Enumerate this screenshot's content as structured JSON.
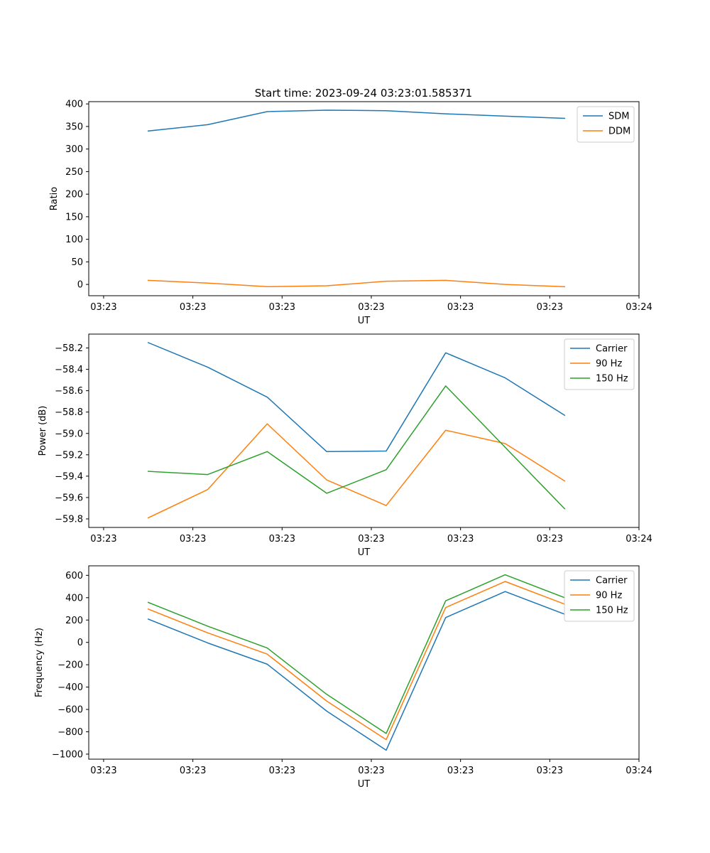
{
  "figure_title": "Start time: 2023-09-24 03:23:01.585371",
  "chart_data": [
    {
      "type": "line",
      "title": "Start time: 2023-09-24 03:23:01.585371",
      "xlabel": "UT",
      "ylabel": "Ratio",
      "x": [
        1,
        2,
        3,
        4,
        5,
        6,
        7,
        8
      ],
      "x_ticks": [
        0.25,
        1.75,
        3.25,
        4.75,
        6.25,
        7.75,
        9.25
      ],
      "x_tick_labels": [
        "03:23",
        "03:23",
        "03:23",
        "03:23",
        "03:23",
        "03:23",
        "03:24"
      ],
      "xlim": [
        0,
        9.25
      ],
      "ylim": [
        -25,
        405
      ],
      "y_ticks": [
        0,
        50,
        100,
        150,
        200,
        250,
        300,
        350,
        400
      ],
      "y_tick_labels": [
        "0",
        "50",
        "100",
        "150",
        "200",
        "250",
        "300",
        "350",
        "400"
      ],
      "legend_position": "upper-right",
      "series": [
        {
          "name": "SDM",
          "color": "#1f77b4",
          "values": [
            340,
            354,
            383,
            386,
            385,
            378,
            373,
            368
          ]
        },
        {
          "name": "DDM",
          "color": "#ff7f0e",
          "values": [
            9,
            3,
            -5,
            -3,
            7,
            9,
            0,
            -5
          ]
        }
      ]
    },
    {
      "type": "line",
      "title": "",
      "xlabel": "UT",
      "ylabel": "Power (dB)",
      "x": [
        1,
        2,
        3,
        4,
        5,
        6,
        7,
        8
      ],
      "x_ticks": [
        0.25,
        1.75,
        3.25,
        4.75,
        6.25,
        7.75,
        9.25
      ],
      "x_tick_labels": [
        "03:23",
        "03:23",
        "03:23",
        "03:23",
        "03:23",
        "03:23",
        "03:24"
      ],
      "xlim": [
        0,
        9.25
      ],
      "ylim": [
        -59.88,
        -58.07
      ],
      "y_ticks": [
        -59.8,
        -59.6,
        -59.4,
        -59.2,
        -59.0,
        -58.8,
        -58.6,
        -58.4,
        -58.2
      ],
      "y_tick_labels": [
        "−59.8",
        "−59.6",
        "−59.4",
        "−59.2",
        "−59.0",
        "−58.8",
        "−58.6",
        "−58.4",
        "−58.2"
      ],
      "legend_position": "upper-right",
      "series": [
        {
          "name": "Carrier",
          "color": "#1f77b4",
          "values": [
            -58.15,
            -58.38,
            -58.66,
            -59.17,
            -59.165,
            -58.245,
            -58.48,
            -58.83
          ]
        },
        {
          "name": "90 Hz",
          "color": "#ff7f0e",
          "values": [
            -59.79,
            -59.525,
            -58.91,
            -59.435,
            -59.675,
            -58.97,
            -59.095,
            -59.445
          ]
        },
        {
          "name": "150 Hz",
          "color": "#2ca02c",
          "values": [
            -59.355,
            -59.385,
            -59.17,
            -59.56,
            -59.34,
            -58.555,
            -59.13,
            -59.705
          ]
        }
      ]
    },
    {
      "type": "line",
      "title": "",
      "xlabel": "UT",
      "ylabel": "Frequency (Hz)",
      "x": [
        1,
        2,
        3,
        4,
        5,
        6,
        7,
        8
      ],
      "x_ticks": [
        0.25,
        1.75,
        3.25,
        4.75,
        6.25,
        7.75,
        9.25
      ],
      "x_tick_labels": [
        "03:23",
        "03:23",
        "03:23",
        "03:23",
        "03:23",
        "03:23",
        "03:24"
      ],
      "xlim": [
        0,
        9.25
      ],
      "ylim": [
        -1045,
        685
      ],
      "y_ticks": [
        -1000,
        -800,
        -600,
        -400,
        -200,
        0,
        200,
        400,
        600
      ],
      "y_tick_labels": [
        "−1000",
        "−800",
        "−600",
        "−400",
        "−200",
        "0",
        "200",
        "400",
        "600"
      ],
      "legend_position": "upper-right",
      "series": [
        {
          "name": "Carrier",
          "color": "#1f77b4",
          "values": [
            208,
            -5,
            -195,
            -615,
            -965,
            222,
            455,
            252
          ]
        },
        {
          "name": "90 Hz",
          "color": "#ff7f0e",
          "values": [
            298,
            85,
            -105,
            -525,
            -870,
            312,
            545,
            342
          ]
        },
        {
          "name": "150 Hz",
          "color": "#2ca02c",
          "values": [
            358,
            145,
            -50,
            -465,
            -815,
            372,
            605,
            400
          ]
        }
      ]
    }
  ]
}
